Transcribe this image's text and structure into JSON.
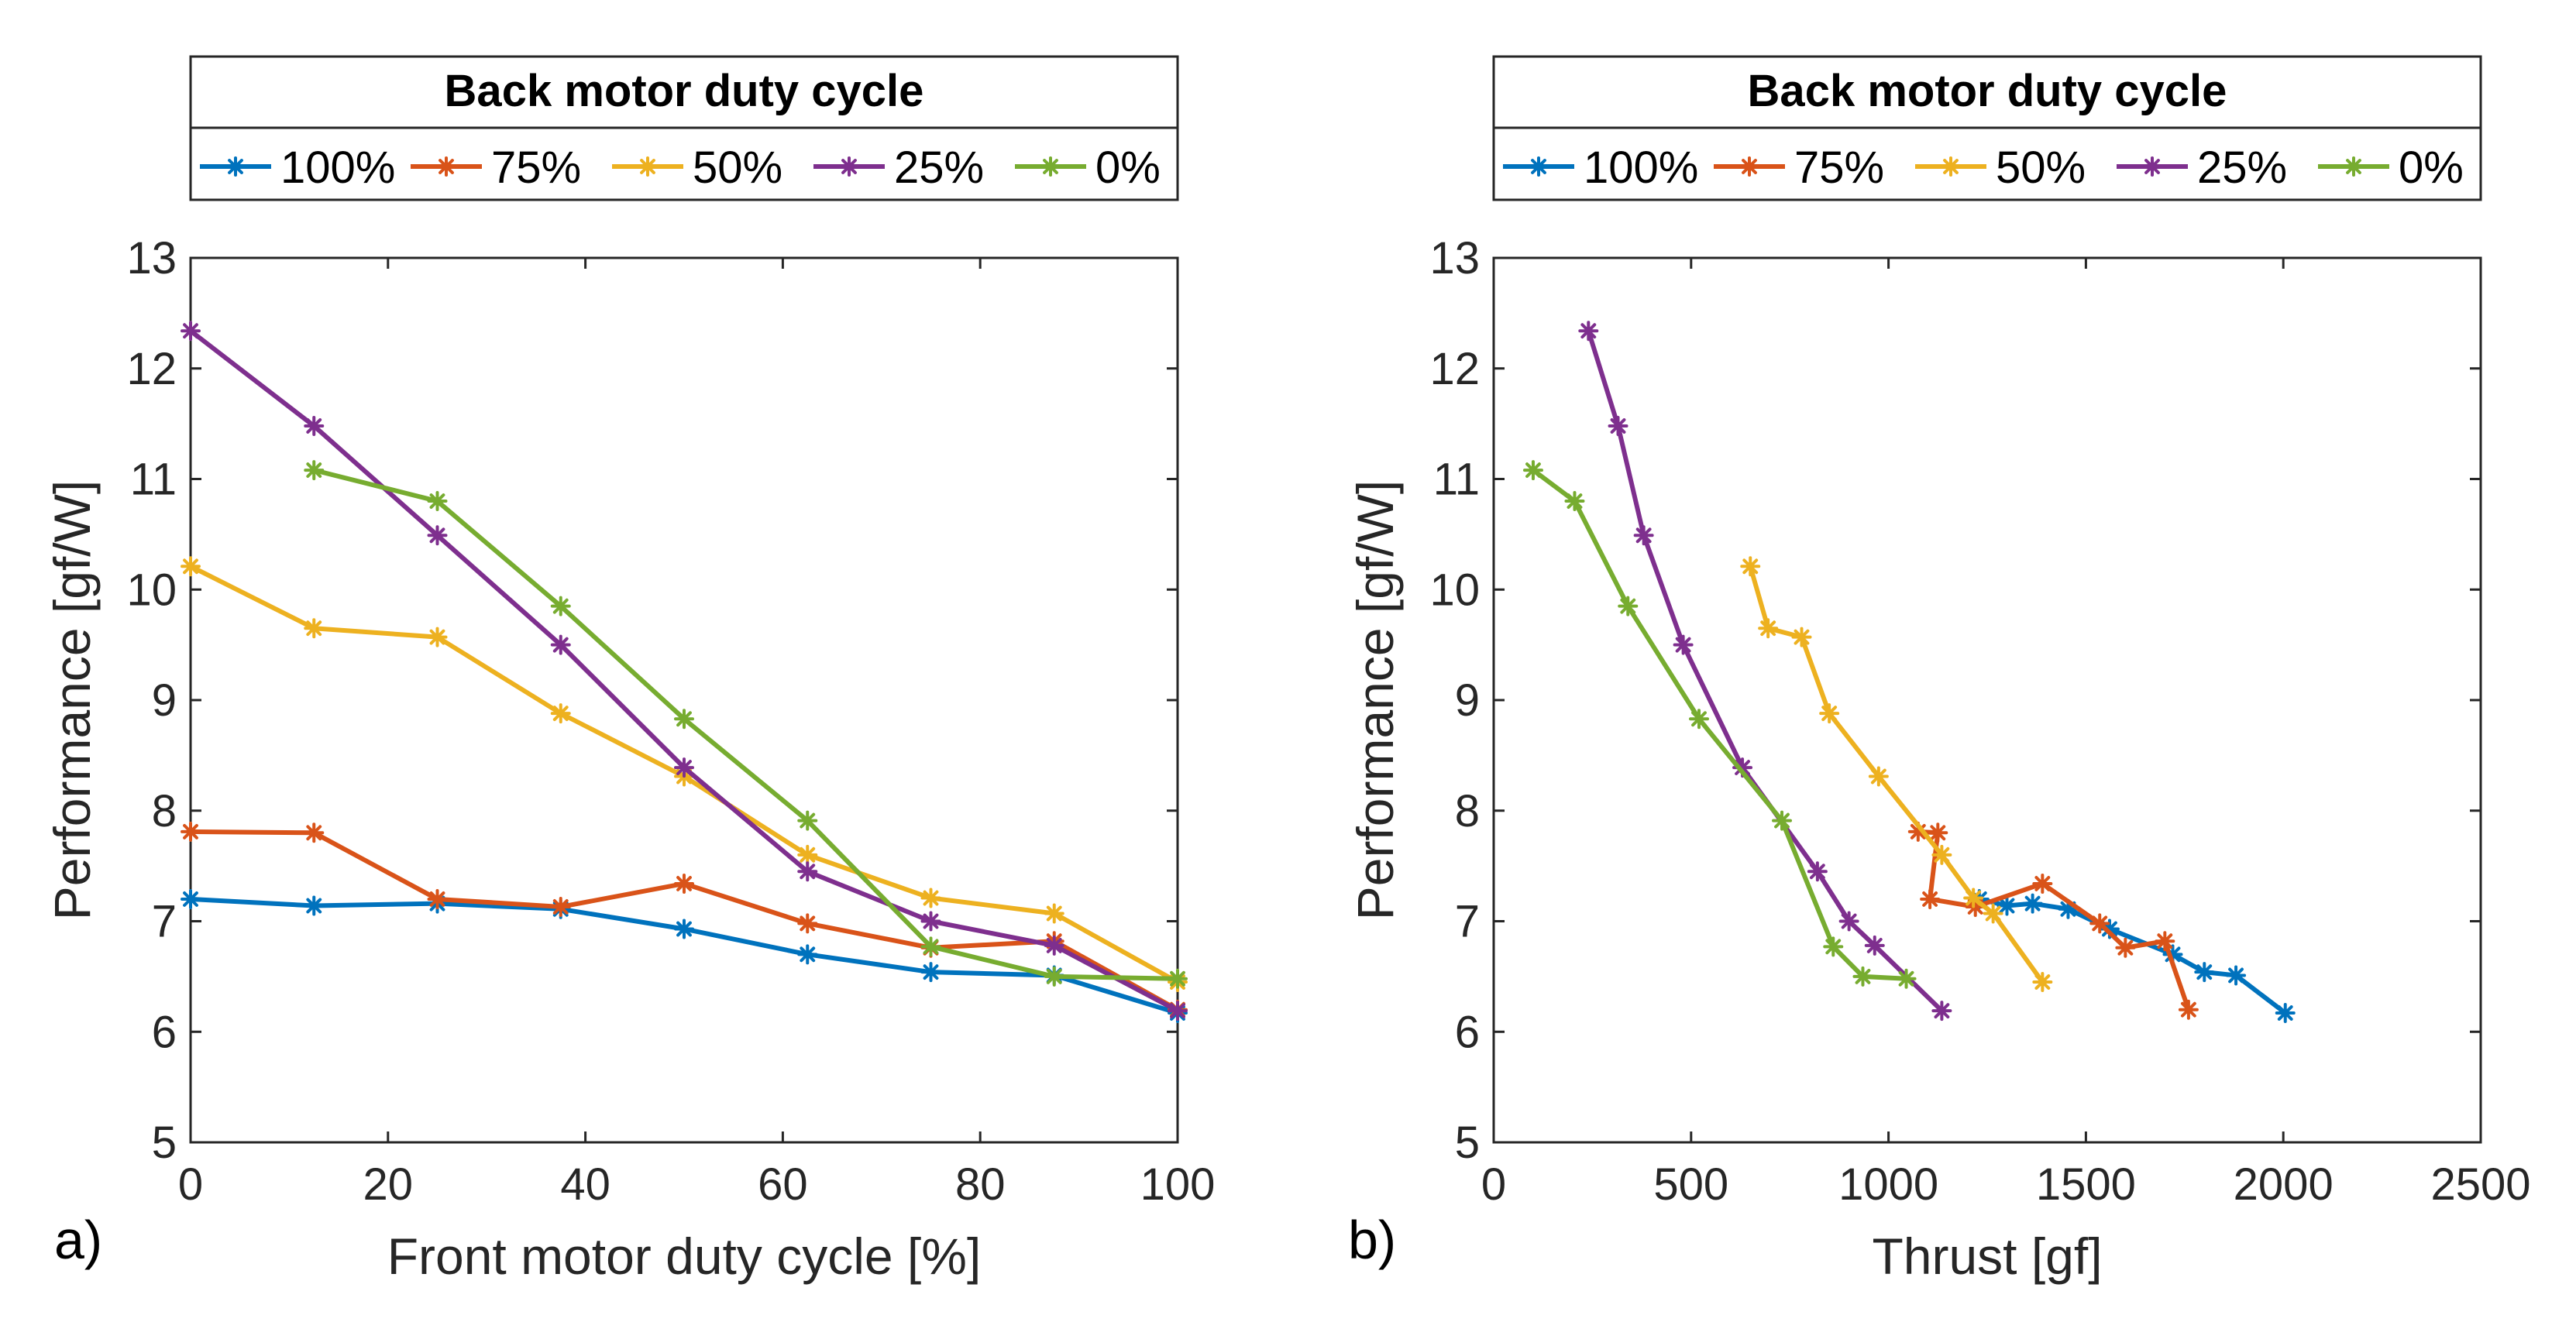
{
  "colors": {
    "100%": "#0072BD",
    "75%": "#D95319",
    "50%": "#EDB120",
    "25%": "#7E2F8E",
    "0%": "#77AC30"
  },
  "chart_data": [
    {
      "type": "line",
      "panel_label": "a)",
      "title": "",
      "xlabel": "Front motor duty cycle [%]",
      "ylabel": "Performance [gf/W]",
      "xlim": [
        0,
        100
      ],
      "ylim": [
        5,
        13
      ],
      "xticks": [
        0,
        20,
        40,
        60,
        80,
        100
      ],
      "yticks": [
        5,
        6,
        7,
        8,
        9,
        10,
        11,
        12,
        13
      ],
      "legend_title": "Back motor duty cycle",
      "legend_position": "top",
      "series": [
        {
          "name": "100%",
          "x": [
            0,
            12.5,
            25,
            37.5,
            50,
            62.5,
            75,
            87.5,
            100
          ],
          "y": [
            7.2,
            7.14,
            7.16,
            7.11,
            6.93,
            6.7,
            6.54,
            6.51,
            6.17
          ]
        },
        {
          "name": "75%",
          "x": [
            0,
            12.5,
            25,
            37.5,
            50,
            62.5,
            75,
            87.5,
            100
          ],
          "y": [
            7.81,
            7.8,
            7.2,
            7.13,
            7.34,
            6.98,
            6.76,
            6.82,
            6.2
          ]
        },
        {
          "name": "50%",
          "x": [
            0,
            12.5,
            25,
            37.5,
            50,
            62.5,
            75,
            87.5,
            100
          ],
          "y": [
            10.21,
            9.65,
            9.57,
            8.88,
            8.31,
            7.6,
            7.21,
            7.07,
            6.45
          ]
        },
        {
          "name": "25%",
          "x": [
            0,
            12.5,
            25,
            37.5,
            50,
            62.5,
            75,
            87.5,
            100
          ],
          "y": [
            12.34,
            11.48,
            10.49,
            9.5,
            8.39,
            7.45,
            7.0,
            6.78,
            6.19
          ]
        },
        {
          "name": "0%",
          "x": [
            12.5,
            25,
            37.5,
            50,
            62.5,
            75,
            87.5,
            100
          ],
          "y": [
            11.08,
            10.8,
            9.85,
            8.83,
            7.91,
            6.77,
            6.5,
            6.48
          ]
        }
      ]
    },
    {
      "type": "line",
      "panel_label": "b)",
      "title": "",
      "xlabel": "Thrust [gf]",
      "ylabel": "Performance [gf/W]",
      "xlim": [
        0,
        2500
      ],
      "ylim": [
        5,
        13
      ],
      "xticks": [
        0,
        500,
        1000,
        1500,
        2000,
        2500
      ],
      "yticks": [
        5,
        6,
        7,
        8,
        9,
        10,
        11,
        12,
        13
      ],
      "legend_title": "Back motor duty cycle",
      "legend_position": "top",
      "series": [
        {
          "name": "100%",
          "x": [
            1230,
            1300,
            1365,
            1455,
            1560,
            1720,
            1800,
            1880,
            2005
          ],
          "y": [
            7.2,
            7.14,
            7.16,
            7.11,
            6.93,
            6.7,
            6.54,
            6.51,
            6.17
          ]
        },
        {
          "name": "75%",
          "x": [
            1075,
            1125,
            1105,
            1220,
            1390,
            1535,
            1600,
            1700,
            1760
          ],
          "y": [
            7.81,
            7.8,
            7.2,
            7.13,
            7.34,
            6.98,
            6.76,
            6.82,
            6.2
          ]
        },
        {
          "name": "50%",
          "x": [
            650,
            695,
            780,
            850,
            975,
            1135,
            1215,
            1265,
            1390
          ],
          "y": [
            10.21,
            9.65,
            9.57,
            8.88,
            8.31,
            7.6,
            7.21,
            7.07,
            6.45
          ]
        },
        {
          "name": "25%",
          "x": [
            240,
            315,
            380,
            480,
            630,
            820,
            900,
            965,
            1135
          ],
          "y": [
            12.34,
            11.48,
            10.49,
            9.5,
            8.39,
            7.45,
            7.0,
            6.78,
            6.19
          ]
        },
        {
          "name": "0%",
          "x": [
            100,
            205,
            340,
            520,
            730,
            860,
            935,
            1045
          ],
          "y": [
            11.08,
            10.8,
            9.85,
            8.83,
            7.91,
            6.77,
            6.5,
            6.48
          ]
        }
      ]
    }
  ]
}
